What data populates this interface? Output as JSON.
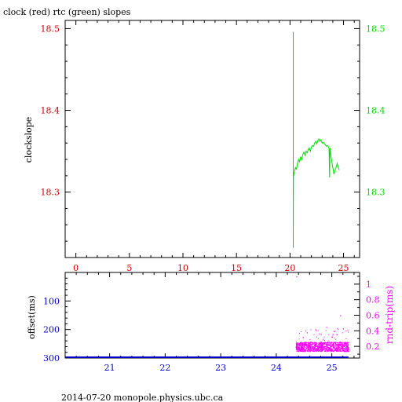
{
  "title": "clock (red) rtc (green) slopes",
  "footer": "2014-07-20 monopole.physics.ubc.ca",
  "colors": {
    "red": "#cc0000",
    "green": "#00dd00",
    "blue": "#0000cc",
    "magenta": "#ff00ff",
    "black": "#000000"
  },
  "chart_data": [
    {
      "type": "line",
      "ylabel": "clockslope",
      "xlim": [
        -1,
        26.5
      ],
      "ylim": [
        18.22,
        18.51
      ],
      "x_ticks": [
        "0",
        "5",
        "10",
        "15",
        "20",
        "25"
      ],
      "left_y_ticks": [
        "18.5",
        "18.4",
        "18.3"
      ],
      "right_y_ticks": [
        "18.5",
        "18.4",
        "18.3"
      ],
      "grid": false,
      "series": [
        {
          "color": "green",
          "x": [
            20.3,
            20.3,
            20.3,
            20.32,
            20.33,
            20.4,
            20.5,
            20.6,
            20.7,
            20.8,
            20.9,
            21.0,
            21.1,
            21.2,
            21.3,
            21.4,
            21.5,
            21.6,
            21.7,
            21.8,
            21.9,
            22.0,
            22.1,
            22.2,
            22.3,
            22.4,
            22.5,
            22.6,
            22.7,
            22.8,
            22.9,
            23.0,
            23.1,
            23.2,
            23.3,
            23.4,
            23.5,
            23.6,
            23.65,
            23.7,
            23.73,
            23.76,
            23.8,
            23.9,
            24.0,
            24.1,
            24.2,
            24.3,
            24.4,
            24.5,
            24.6
          ],
          "y": [
            18.318,
            18.496,
            18.232,
            18.315,
            18.32,
            18.324,
            18.33,
            18.328,
            18.335,
            18.34,
            18.337,
            18.343,
            18.34,
            18.346,
            18.349,
            18.345,
            18.35,
            18.348,
            18.352,
            18.354,
            18.35,
            18.355,
            18.357,
            18.356,
            18.36,
            18.362,
            18.359,
            18.363,
            18.365,
            18.362,
            18.364,
            18.36,
            18.361,
            18.359,
            18.358,
            18.356,
            18.357,
            18.355,
            18.353,
            18.318,
            18.354,
            18.352,
            18.346,
            18.338,
            18.33,
            18.322,
            18.326,
            18.33,
            18.335,
            18.331,
            18.327
          ]
        }
      ]
    },
    {
      "type": "scatter",
      "ylabel": "offset(ms)",
      "y2label": "rnd-trip(ms)",
      "xlim": [
        20.2,
        25.5
      ],
      "ylim": [
        300,
        0
      ],
      "y2lim": [
        0.05,
        1.15
      ],
      "x_ticks": [
        "21",
        "22",
        "23",
        "24",
        "25"
      ],
      "left_y_ticks": [
        "100",
        "200",
        "300"
      ],
      "right_y_ticks": [
        "1",
        "0.8",
        "0.6",
        "0.4",
        "0.2"
      ],
      "grid": false,
      "series": [
        {
          "color": "blue",
          "x": [
            20.2,
            21.0,
            22.0,
            23.0,
            24.0,
            25.3
          ],
          "y": [
            300,
            300,
            300,
            300,
            300,
            300
          ]
        },
        {
          "color": "magenta",
          "x_range": [
            24.35,
            25.3
          ],
          "band": [
            0.14,
            0.26
          ],
          "outliers": [
            [
              24.36,
              1.1
            ],
            [
              25.15,
              0.6
            ],
            [
              24.7,
              0.42
            ],
            [
              24.9,
              0.45
            ],
            [
              25.05,
              0.4
            ],
            [
              24.55,
              0.38
            ],
            [
              25.2,
              0.43
            ],
            [
              24.8,
              0.36
            ]
          ]
        }
      ]
    }
  ]
}
